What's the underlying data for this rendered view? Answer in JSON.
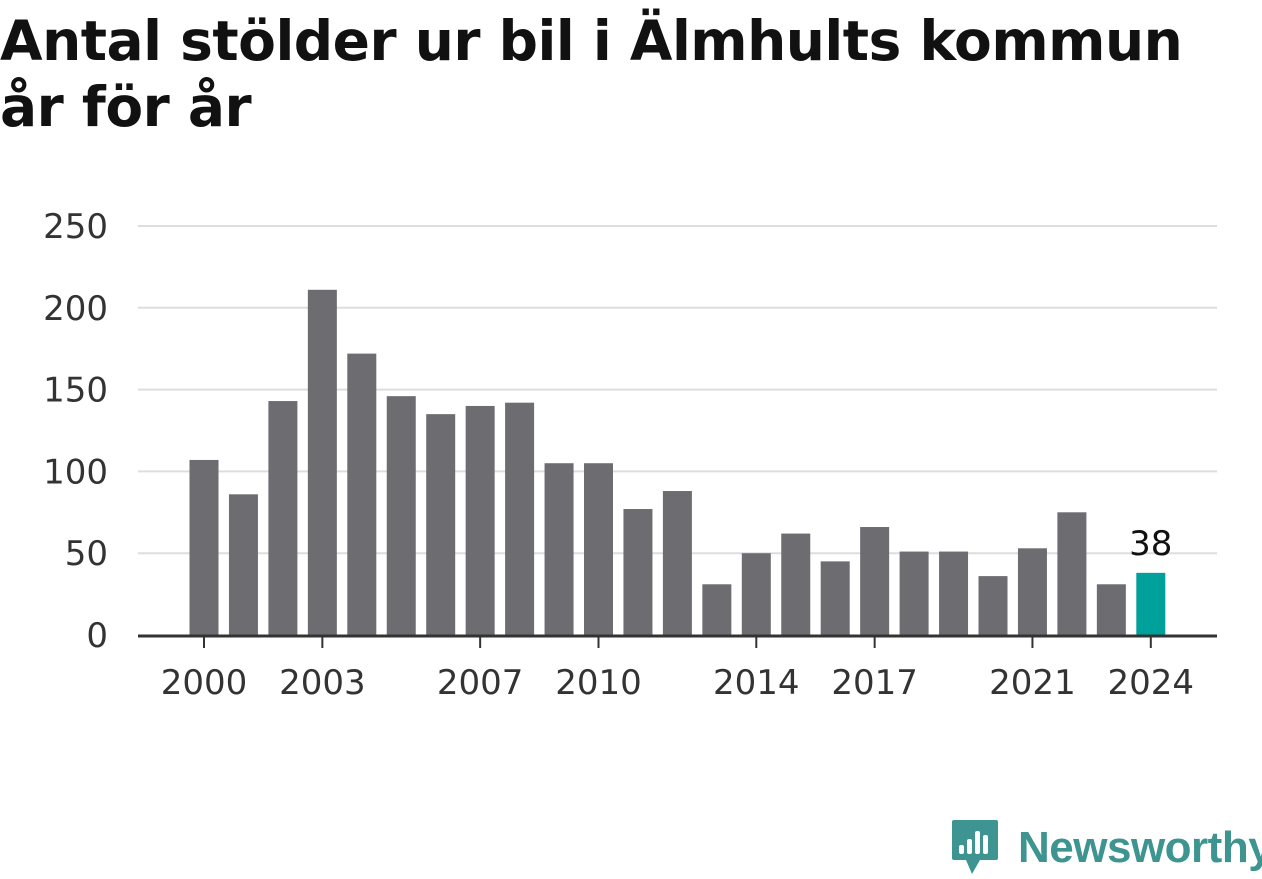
{
  "chart_data": {
    "type": "bar",
    "title": "Antal stölder ur bil i Älmhults kommun år för år",
    "categories": [
      2000,
      2001,
      2002,
      2003,
      2004,
      2005,
      2006,
      2007,
      2008,
      2009,
      2010,
      2011,
      2012,
      2013,
      2014,
      2015,
      2016,
      2017,
      2018,
      2019,
      2020,
      2021,
      2022,
      2023,
      2024
    ],
    "values": [
      107,
      86,
      143,
      211,
      172,
      146,
      135,
      140,
      142,
      105,
      105,
      77,
      88,
      31,
      50,
      62,
      45,
      66,
      51,
      51,
      36,
      53,
      75,
      31,
      38
    ],
    "x_tick_labels": [
      "2000",
      "2003",
      "2007",
      "2010",
      "2014",
      "2017",
      "2021",
      "2024"
    ],
    "y_ticks": [
      0,
      50,
      100,
      150,
      200,
      250
    ],
    "ylim": [
      0,
      250
    ],
    "grid": true,
    "highlight": {
      "category": 2024,
      "label": "38"
    },
    "colors": {
      "bar": "#6d6c71",
      "highlight": "#00a19a",
      "grid": "#dddddd",
      "axis": "#333333",
      "text": "#333333"
    }
  },
  "brand": {
    "name": "Newsworthy",
    "icon": "newsworthy-logo-icon",
    "color": "#3e9490"
  }
}
